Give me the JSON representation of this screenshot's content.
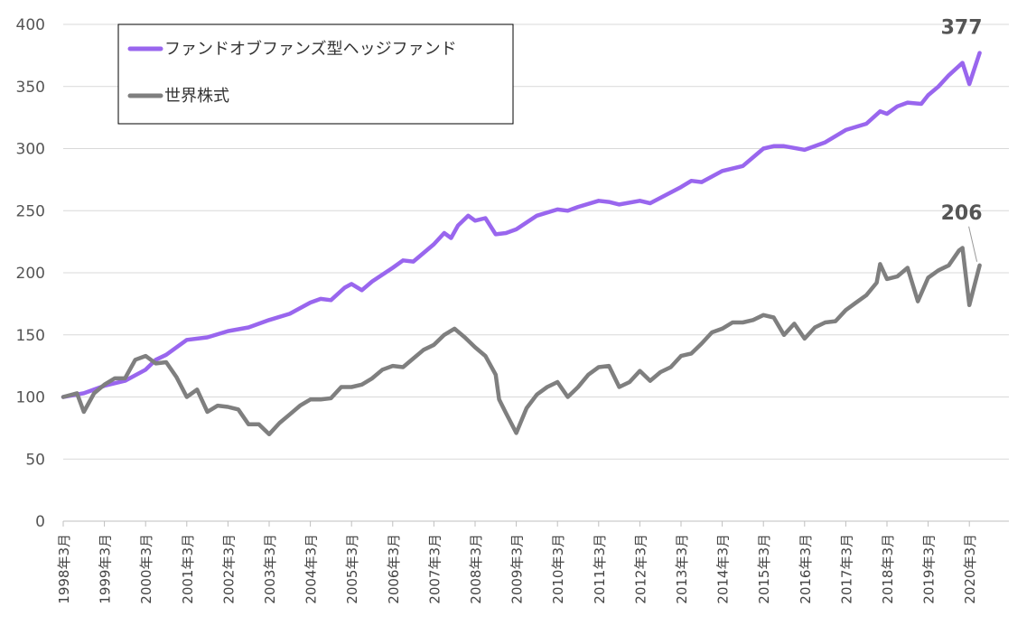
{
  "chart_data": {
    "type": "line",
    "title": "",
    "xlabel": "",
    "ylabel": "",
    "ylim": [
      0,
      400
    ],
    "yticks": [
      "0",
      "50",
      "100",
      "150",
      "200",
      "250",
      "300",
      "350",
      "400"
    ],
    "xticks": [
      "1998年3月",
      "1999年3月",
      "2000年3月",
      "2001年3月",
      "2002年3月",
      "2003年3月",
      "2004年3月",
      "2005年3月",
      "2006年3月",
      "2007年3月",
      "2008年3月",
      "2009年3月",
      "2010年3月",
      "2011年3月",
      "2012年3月",
      "2013年3月",
      "2014年3月",
      "2015年3月",
      "2016年3月",
      "2017年3月",
      "2018年3月",
      "2019年3月",
      "2020年3月"
    ],
    "x_start": "1998-03",
    "x_end": "2020-06",
    "grid": "horizontal",
    "legend_position": "top-left",
    "series": [
      {
        "name": "ファンドオブファンズ型ヘッジファンド",
        "color": "#9966ee",
        "end_label": "377",
        "points": [
          [
            "1998-03",
            100
          ],
          [
            "1998-09",
            103
          ],
          [
            "1999-03",
            109
          ],
          [
            "1999-09",
            113
          ],
          [
            "2000-03",
            122
          ],
          [
            "2000-06",
            130
          ],
          [
            "2000-09",
            134
          ],
          [
            "2001-03",
            146
          ],
          [
            "2001-09",
            148
          ],
          [
            "2002-03",
            153
          ],
          [
            "2002-09",
            156
          ],
          [
            "2003-03",
            162
          ],
          [
            "2003-09",
            167
          ],
          [
            "2004-03",
            176
          ],
          [
            "2004-06",
            179
          ],
          [
            "2004-09",
            178
          ],
          [
            "2005-01",
            188
          ],
          [
            "2005-03",
            191
          ],
          [
            "2005-06",
            186
          ],
          [
            "2005-09",
            193
          ],
          [
            "2006-03",
            204
          ],
          [
            "2006-06",
            210
          ],
          [
            "2006-09",
            209
          ],
          [
            "2007-03",
            223
          ],
          [
            "2007-06",
            232
          ],
          [
            "2007-08",
            228
          ],
          [
            "2007-10",
            238
          ],
          [
            "2008-01",
            246
          ],
          [
            "2008-03",
            242
          ],
          [
            "2008-06",
            244
          ],
          [
            "2008-09",
            231
          ],
          [
            "2008-12",
            232
          ],
          [
            "2009-03",
            235
          ],
          [
            "2009-09",
            246
          ],
          [
            "2010-03",
            251
          ],
          [
            "2010-06",
            250
          ],
          [
            "2010-09",
            253
          ],
          [
            "2011-03",
            258
          ],
          [
            "2011-06",
            257
          ],
          [
            "2011-09",
            255
          ],
          [
            "2012-03",
            258
          ],
          [
            "2012-06",
            256
          ],
          [
            "2013-03",
            269
          ],
          [
            "2013-06",
            274
          ],
          [
            "2013-09",
            273
          ],
          [
            "2014-03",
            282
          ],
          [
            "2014-09",
            286
          ],
          [
            "2015-03",
            300
          ],
          [
            "2015-06",
            302
          ],
          [
            "2015-09",
            302
          ],
          [
            "2016-03",
            299
          ],
          [
            "2016-06",
            302
          ],
          [
            "2016-09",
            305
          ],
          [
            "2017-03",
            315
          ],
          [
            "2017-09",
            320
          ],
          [
            "2018-01",
            330
          ],
          [
            "2018-03",
            328
          ],
          [
            "2018-06",
            334
          ],
          [
            "2018-09",
            337
          ],
          [
            "2019-01",
            336
          ],
          [
            "2019-03",
            343
          ],
          [
            "2019-06",
            350
          ],
          [
            "2019-09",
            359
          ],
          [
            "2020-01",
            369
          ],
          [
            "2020-03",
            352
          ],
          [
            "2020-06",
            377
          ]
        ]
      },
      {
        "name": "世界株式",
        "color": "#7f7f7f",
        "end_label": "206",
        "points": [
          [
            "1998-03",
            100
          ],
          [
            "1998-07",
            103
          ],
          [
            "1998-09",
            88
          ],
          [
            "1998-12",
            103
          ],
          [
            "1999-03",
            110
          ],
          [
            "1999-06",
            115
          ],
          [
            "1999-09",
            115
          ],
          [
            "1999-12",
            130
          ],
          [
            "2000-03",
            133
          ],
          [
            "2000-06",
            127
          ],
          [
            "2000-09",
            128
          ],
          [
            "2000-12",
            116
          ],
          [
            "2001-03",
            100
          ],
          [
            "2001-06",
            106
          ],
          [
            "2001-09",
            88
          ],
          [
            "2001-12",
            93
          ],
          [
            "2002-03",
            92
          ],
          [
            "2002-06",
            90
          ],
          [
            "2002-09",
            78
          ],
          [
            "2002-12",
            78
          ],
          [
            "2003-03",
            70
          ],
          [
            "2003-06",
            79
          ],
          [
            "2003-09",
            86
          ],
          [
            "2003-12",
            93
          ],
          [
            "2004-03",
            98
          ],
          [
            "2004-06",
            98
          ],
          [
            "2004-09",
            99
          ],
          [
            "2004-12",
            108
          ],
          [
            "2005-03",
            108
          ],
          [
            "2005-06",
            110
          ],
          [
            "2005-09",
            115
          ],
          [
            "2005-12",
            122
          ],
          [
            "2006-03",
            125
          ],
          [
            "2006-06",
            124
          ],
          [
            "2006-09",
            131
          ],
          [
            "2006-12",
            138
          ],
          [
            "2007-03",
            142
          ],
          [
            "2007-06",
            150
          ],
          [
            "2007-09",
            155
          ],
          [
            "2007-12",
            148
          ],
          [
            "2008-03",
            140
          ],
          [
            "2008-06",
            133
          ],
          [
            "2008-09",
            118
          ],
          [
            "2008-10",
            98
          ],
          [
            "2008-12",
            87
          ],
          [
            "2009-03",
            71
          ],
          [
            "2009-06",
            91
          ],
          [
            "2009-09",
            102
          ],
          [
            "2009-12",
            108
          ],
          [
            "2010-03",
            112
          ],
          [
            "2010-06",
            100
          ],
          [
            "2010-09",
            108
          ],
          [
            "2010-12",
            118
          ],
          [
            "2011-03",
            124
          ],
          [
            "2011-06",
            125
          ],
          [
            "2011-09",
            108
          ],
          [
            "2011-12",
            112
          ],
          [
            "2012-03",
            121
          ],
          [
            "2012-06",
            113
          ],
          [
            "2012-09",
            120
          ],
          [
            "2012-12",
            124
          ],
          [
            "2013-03",
            133
          ],
          [
            "2013-06",
            135
          ],
          [
            "2013-09",
            143
          ],
          [
            "2013-12",
            152
          ],
          [
            "2014-03",
            155
          ],
          [
            "2014-06",
            160
          ],
          [
            "2014-09",
            160
          ],
          [
            "2014-12",
            162
          ],
          [
            "2015-03",
            166
          ],
          [
            "2015-06",
            164
          ],
          [
            "2015-09",
            150
          ],
          [
            "2015-12",
            159
          ],
          [
            "2016-03",
            147
          ],
          [
            "2016-06",
            156
          ],
          [
            "2016-09",
            160
          ],
          [
            "2016-12",
            161
          ],
          [
            "2017-03",
            170
          ],
          [
            "2017-06",
            176
          ],
          [
            "2017-09",
            182
          ],
          [
            "2017-12",
            192
          ],
          [
            "2018-01",
            207
          ],
          [
            "2018-03",
            195
          ],
          [
            "2018-06",
            197
          ],
          [
            "2018-09",
            204
          ],
          [
            "2018-12",
            177
          ],
          [
            "2019-03",
            196
          ],
          [
            "2019-06",
            202
          ],
          [
            "2019-09",
            206
          ],
          [
            "2019-12",
            218
          ],
          [
            "2020-01",
            220
          ],
          [
            "2020-03",
            174
          ],
          [
            "2020-06",
            206
          ]
        ]
      }
    ]
  }
}
